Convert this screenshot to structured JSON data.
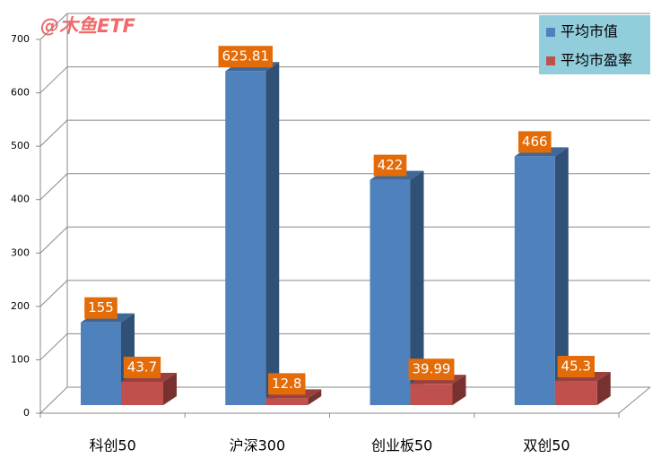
{
  "chart_data": {
    "type": "bar3d",
    "watermark": "@木鱼ETF",
    "categories": [
      "科创50",
      "沪深300",
      "创业板50",
      "双创50"
    ],
    "series": [
      {
        "name": "平均市值",
        "color": "#4f81bd",
        "values": [
          155,
          625.81,
          422,
          466
        ]
      },
      {
        "name": "平均市盈率",
        "color": "#c0504d",
        "values": [
          43.7,
          12.8,
          39.99,
          45.3
        ]
      }
    ],
    "ylim": [
      0,
      700
    ],
    "yticks": [
      0,
      100,
      200,
      300,
      400,
      500,
      600,
      700
    ],
    "grid": true,
    "legend": "top-right"
  }
}
